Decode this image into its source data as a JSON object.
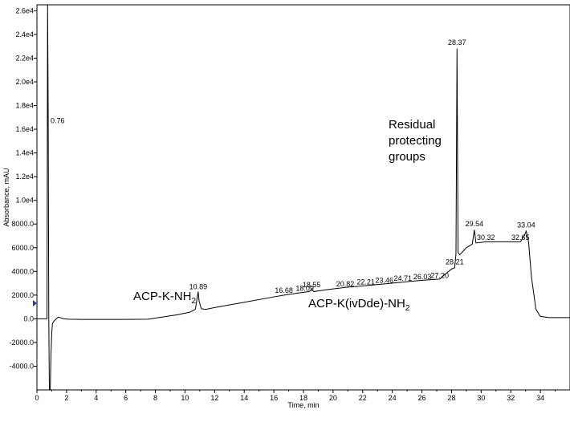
{
  "chart_data": {
    "type": "line",
    "xlabel": "Time, min",
    "ylabel": "Absorbance, mAU",
    "xlim": [
      0,
      36
    ],
    "ylim": [
      -6000,
      26500
    ],
    "grid": false,
    "x_ticks": [
      0,
      2,
      4,
      6,
      8,
      10,
      12,
      14,
      16,
      18,
      20,
      22,
      24,
      26,
      28,
      30,
      32,
      34
    ],
    "x_tick_labels": [
      "0",
      "2",
      "4",
      "6",
      "8",
      "10",
      "12",
      "14",
      "16",
      "18",
      "20",
      "22",
      "24",
      "26",
      "28",
      "30",
      "32",
      "34"
    ],
    "y_ticks": [
      -4000,
      -2000,
      0,
      2000,
      4000,
      6000,
      8000,
      10000,
      12000,
      14000,
      16000,
      18000,
      20000,
      22000,
      24000,
      26000
    ],
    "y_tick_labels": [
      "-4000.0",
      "-2000.0",
      "0.0",
      "2000.0",
      "4000.0",
      "6000.0",
      "8000.0",
      "1.0e4",
      "1.2e4",
      "1.4e4",
      "1.6e4",
      "1.8e4",
      "2.0e4",
      "2.2e4",
      "2.4e4",
      "2.6e4"
    ],
    "series": [
      {
        "color": "#000000",
        "x": [
          0.0,
          0.5,
          0.68,
          0.72,
          0.76,
          0.8,
          0.84,
          0.9,
          0.95,
          1.0,
          1.05,
          1.15,
          1.3,
          1.45,
          1.6,
          1.8,
          2.2,
          3.0,
          4.5,
          6.0,
          7.5,
          8.5,
          9.5,
          10.3,
          10.7,
          10.85,
          10.89,
          10.95,
          11.1,
          11.4,
          12.0,
          14.0,
          16.0,
          16.68,
          17.5,
          18.09,
          18.4,
          18.55,
          18.7,
          19.5,
          20.82,
          22.21,
          23.46,
          24.71,
          26.03,
          27.2,
          27.6,
          28.0,
          28.21,
          28.3,
          28.37,
          28.44,
          28.55,
          29.0,
          29.4,
          29.54,
          29.65,
          30.0,
          30.32,
          31.5,
          32.65,
          32.9,
          33.04,
          33.2,
          33.4,
          33.7,
          34.0,
          34.3,
          34.6,
          35.0,
          36.0
        ],
        "y": [
          0,
          0,
          0,
          26500,
          17800,
          200,
          -6000,
          -6000,
          -3000,
          -1200,
          -400,
          -200,
          0,
          150,
          80,
          0,
          -30,
          -50,
          -50,
          -50,
          -30,
          150,
          350,
          550,
          800,
          2000,
          2300,
          1500,
          850,
          800,
          950,
          1400,
          1850,
          2000,
          2150,
          2250,
          2300,
          2500,
          2300,
          2450,
          2650,
          2800,
          2950,
          3100,
          3250,
          3350,
          3800,
          4200,
          4300,
          5500,
          22800,
          5600,
          5400,
          6000,
          6300,
          7500,
          6400,
          6450,
          6500,
          6500,
          6500,
          7000,
          7400,
          6500,
          3500,
          800,
          200,
          150,
          100,
          100,
          100
        ]
      }
    ],
    "peak_labels": [
      {
        "x": 0.76,
        "y": 16500,
        "text": "0.76"
      },
      {
        "x": 10.89,
        "y": 2500,
        "text": "10.89"
      },
      {
        "x": 16.68,
        "y": 2200,
        "text": "16.68"
      },
      {
        "x": 18.09,
        "y": 2350,
        "text": "18.09"
      },
      {
        "x": 18.55,
        "y": 2650,
        "text": "18.55"
      },
      {
        "x": 20.82,
        "y": 2750,
        "text": "20.82"
      },
      {
        "x": 22.21,
        "y": 2900,
        "text": "22.21"
      },
      {
        "x": 23.46,
        "y": 3050,
        "text": "23.46"
      },
      {
        "x": 24.71,
        "y": 3200,
        "text": "24.71"
      },
      {
        "x": 26.03,
        "y": 3350,
        "text": "26.03"
      },
      {
        "x": 27.2,
        "y": 3450,
        "text": "27.20"
      },
      {
        "x": 28.21,
        "y": 4600,
        "text": "28.21"
      },
      {
        "x": 28.37,
        "y": 23100,
        "text": "28.37"
      },
      {
        "x": 29.54,
        "y": 7800,
        "text": "29.54"
      },
      {
        "x": 30.32,
        "y": 6650,
        "text": "30.32"
      },
      {
        "x": 32.65,
        "y": 6650,
        "text": "32.65"
      },
      {
        "x": 33.04,
        "y": 7700,
        "text": "33.04"
      }
    ],
    "annotations": {
      "acp_k_nh2": {
        "main": "ACP-K-NH",
        "sub": "2"
      },
      "acp_k_ivdde_nh2": {
        "main": "ACP-K(ivDde)-NH",
        "sub": "2"
      },
      "residual": [
        "Residual",
        "protecting",
        "groups"
      ]
    }
  }
}
